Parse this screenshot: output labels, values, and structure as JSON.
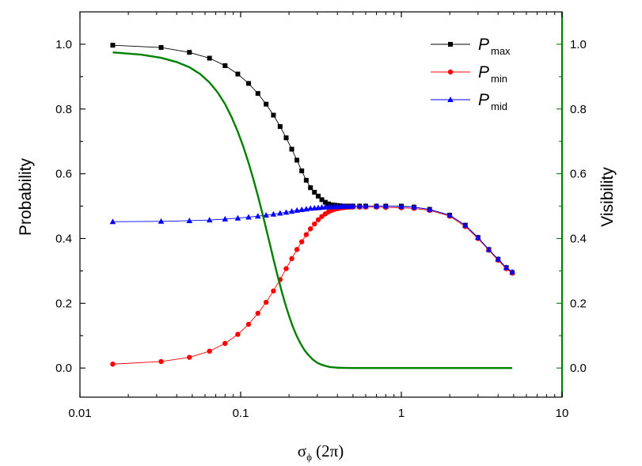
{
  "chart_data": {
    "type": "line",
    "xscale": "log",
    "xlim": [
      0.01,
      10
    ],
    "ylim": [
      -0.09,
      1.1
    ],
    "y2lim": [
      -0.09,
      1.1
    ],
    "x_ticks": [
      0.01,
      0.1,
      1,
      10
    ],
    "x_tick_labels": [
      "0.01",
      "0.1",
      "1",
      "10"
    ],
    "y_ticks": [
      0.0,
      0.2,
      0.4,
      0.6,
      0.8,
      1.0
    ],
    "y_tick_labels": [
      "0.0",
      "0.2",
      "0.4",
      "0.6",
      "0.8",
      "1.0"
    ],
    "y2_ticks": [
      0.0,
      0.2,
      0.4,
      0.6,
      0.8,
      1.0
    ],
    "y2_tick_labels": [
      "0.0",
      "0.2",
      "0.4",
      "0.6",
      "0.8",
      "1.0"
    ],
    "xlabel_symbol": "σ",
    "xlabel_subscript": "ϕ",
    "xlabel_rest": " (2π)",
    "ylabel": "Probability",
    "y2label": "Visibility",
    "left_axis_color": "#000000",
    "right_axis_color": "#008000",
    "legend_position": "top-right",
    "series": [
      {
        "id": "pmax",
        "legend_main": "P",
        "legend_sub": "max",
        "color": "#000000",
        "marker": "square",
        "axis": "left",
        "x": [
          0.016,
          0.032,
          0.048,
          0.064,
          0.08,
          0.096,
          0.112,
          0.128,
          0.144,
          0.16,
          0.176,
          0.192,
          0.208,
          0.224,
          0.24,
          0.256,
          0.272,
          0.288,
          0.304,
          0.32,
          0.336,
          0.352,
          0.368,
          0.384,
          0.4,
          0.416,
          0.432,
          0.448,
          0.464,
          0.48,
          0.5,
          0.55,
          0.6,
          0.7,
          0.8,
          1.0,
          1.2,
          1.5,
          2.0,
          2.5,
          3.0,
          3.5,
          4.0,
          4.5,
          4.9
        ],
        "y": [
          0.997,
          0.99,
          0.975,
          0.957,
          0.934,
          0.908,
          0.879,
          0.848,
          0.815,
          0.781,
          0.746,
          0.711,
          0.676,
          0.642,
          0.609,
          0.58,
          0.557,
          0.543,
          0.531,
          0.52,
          0.512,
          0.507,
          0.504,
          0.503,
          0.502,
          0.501,
          0.5,
          0.5,
          0.5,
          0.5,
          0.5,
          0.5,
          0.5,
          0.5,
          0.5,
          0.5,
          0.497,
          0.49,
          0.472,
          0.441,
          0.403,
          0.366,
          0.336,
          0.31,
          0.295
        ]
      },
      {
        "id": "pmin",
        "legend_main": "P",
        "legend_sub": "min",
        "color": "#ff0000",
        "marker": "circle",
        "axis": "left",
        "x": [
          0.016,
          0.032,
          0.048,
          0.064,
          0.08,
          0.096,
          0.112,
          0.128,
          0.144,
          0.16,
          0.176,
          0.192,
          0.208,
          0.224,
          0.24,
          0.256,
          0.272,
          0.288,
          0.304,
          0.32,
          0.336,
          0.352,
          0.368,
          0.384,
          0.4,
          0.416,
          0.432,
          0.448,
          0.464,
          0.48,
          0.5,
          0.55,
          0.6,
          0.7,
          0.8,
          1.0,
          1.2,
          1.5,
          2.0,
          2.5,
          3.0,
          3.5,
          4.0,
          4.5,
          4.9
        ],
        "y": [
          0.012,
          0.02,
          0.033,
          0.052,
          0.076,
          0.104,
          0.135,
          0.169,
          0.203,
          0.238,
          0.273,
          0.307,
          0.338,
          0.366,
          0.39,
          0.412,
          0.43,
          0.445,
          0.458,
          0.468,
          0.476,
          0.482,
          0.487,
          0.49,
          0.492,
          0.494,
          0.495,
          0.496,
          0.497,
          0.497,
          0.497,
          0.497,
          0.497,
          0.497,
          0.496,
          0.495,
          0.493,
          0.487,
          0.469,
          0.437,
          0.4,
          0.364,
          0.333,
          0.307,
          0.293
        ]
      },
      {
        "id": "pmid",
        "legend_main": "P",
        "legend_sub": "mid",
        "color": "#0000ff",
        "marker": "triangle",
        "axis": "left",
        "x": [
          0.016,
          0.032,
          0.048,
          0.064,
          0.08,
          0.096,
          0.112,
          0.128,
          0.144,
          0.16,
          0.176,
          0.192,
          0.208,
          0.224,
          0.24,
          0.256,
          0.272,
          0.288,
          0.304,
          0.32,
          0.336,
          0.352,
          0.368,
          0.384,
          0.4,
          0.416,
          0.432,
          0.448,
          0.464,
          0.48,
          0.5,
          0.55,
          0.6,
          0.7,
          0.8,
          1.0,
          1.2,
          1.5,
          2.0,
          2.5,
          3.0,
          3.5,
          4.0,
          4.5,
          4.9
        ],
        "y": [
          0.452,
          0.453,
          0.455,
          0.457,
          0.46,
          0.463,
          0.466,
          0.469,
          0.472,
          0.475,
          0.478,
          0.481,
          0.484,
          0.487,
          0.489,
          0.491,
          0.493,
          0.494,
          0.495,
          0.496,
          0.497,
          0.497,
          0.498,
          0.498,
          0.498,
          0.499,
          0.499,
          0.499,
          0.499,
          0.499,
          0.5,
          0.5,
          0.5,
          0.5,
          0.5,
          0.499,
          0.497,
          0.49,
          0.472,
          0.441,
          0.403,
          0.366,
          0.336,
          0.31,
          0.297
        ]
      },
      {
        "id": "visibility",
        "legend_main": "",
        "legend_sub": "",
        "color": "#008000",
        "marker": "none",
        "axis": "right",
        "x": [
          0.016,
          0.024,
          0.032,
          0.04,
          0.048,
          0.056,
          0.064,
          0.072,
          0.08,
          0.088,
          0.096,
          0.104,
          0.112,
          0.12,
          0.128,
          0.136,
          0.144,
          0.152,
          0.16,
          0.17,
          0.18,
          0.19,
          0.2,
          0.21,
          0.22,
          0.23,
          0.24,
          0.25,
          0.26,
          0.28,
          0.3,
          0.32,
          0.34,
          0.36,
          0.38,
          0.4,
          0.43,
          0.46,
          0.5,
          0.55,
          0.6,
          0.7,
          1.0,
          2.0,
          4.9
        ],
        "y": [
          0.975,
          0.968,
          0.958,
          0.945,
          0.929,
          0.908,
          0.882,
          0.851,
          0.815,
          0.774,
          0.73,
          0.683,
          0.634,
          0.583,
          0.532,
          0.481,
          0.431,
          0.383,
          0.336,
          0.284,
          0.237,
          0.196,
          0.161,
          0.131,
          0.106,
          0.086,
          0.069,
          0.055,
          0.044,
          0.027,
          0.016,
          0.01,
          0.006,
          0.003,
          0.002,
          0.001,
          0.0005,
          0.0002,
          0.0,
          0.0,
          0.0,
          0.0,
          0.0,
          0.0,
          0.0
        ]
      }
    ]
  }
}
